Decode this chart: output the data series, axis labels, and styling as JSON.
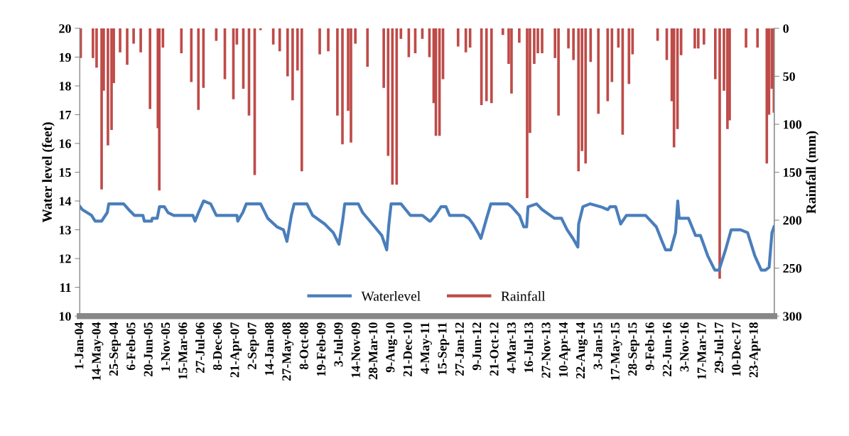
{
  "chart_data": {
    "type": "line",
    "ylabel": "Water level (feet)",
    "y2label": "Rainfall (mm)",
    "xlim": [
      "2003-12-29",
      "2018-09-22"
    ],
    "xticks": [
      {
        "value": "2004-01-01",
        "label": "1-Jan-04"
      },
      {
        "value": "2004-05-14",
        "label": "14-May-04"
      },
      {
        "value": "2004-09-25",
        "label": "25-Sep-04"
      },
      {
        "value": "2005-02-06",
        "label": "6-Feb-05"
      },
      {
        "value": "2005-06-20",
        "label": "20-Jun-05"
      },
      {
        "value": "2005-11-01",
        "label": "1-Nov-05"
      },
      {
        "value": "2006-03-15",
        "label": "15-Mar-06"
      },
      {
        "value": "2006-07-27",
        "label": "27-Jul-06"
      },
      {
        "value": "2006-12-08",
        "label": "8-Dec-06"
      },
      {
        "value": "2007-04-21",
        "label": "21-Apr-07"
      },
      {
        "value": "2007-09-02",
        "label": "2-Sep-07"
      },
      {
        "value": "2008-01-14",
        "label": "14-Jan-08"
      },
      {
        "value": "2008-05-27",
        "label": "27-May-08"
      },
      {
        "value": "2008-10-08",
        "label": "8-Oct-08"
      },
      {
        "value": "2009-02-19",
        "label": "19-Feb-09"
      },
      {
        "value": "2009-07-03",
        "label": "3-Jul-09"
      },
      {
        "value": "2009-11-14",
        "label": "14-Nov-09"
      },
      {
        "value": "2010-03-28",
        "label": "28-Mar-10"
      },
      {
        "value": "2010-08-09",
        "label": "9-Aug-10"
      },
      {
        "value": "2010-12-21",
        "label": "21-Dec-10"
      },
      {
        "value": "2011-05-04",
        "label": "4-May-11"
      },
      {
        "value": "2011-09-15",
        "label": "15-Sep-11"
      },
      {
        "value": "2012-01-27",
        "label": "27-Jan-12"
      },
      {
        "value": "2012-06-09",
        "label": "9-Jun-12"
      },
      {
        "value": "2012-10-21",
        "label": "21-Oct-12"
      },
      {
        "value": "2013-03-04",
        "label": "4-Mar-13"
      },
      {
        "value": "2013-07-16",
        "label": "16-Jul-13"
      },
      {
        "value": "2013-11-27",
        "label": "27-Nov-13"
      },
      {
        "value": "2014-04-10",
        "label": "10-Apr-14"
      },
      {
        "value": "2014-08-22",
        "label": "22-Aug-14"
      },
      {
        "value": "2015-01-03",
        "label": "3-Jan-15"
      },
      {
        "value": "2015-05-17",
        "label": "17-May-15"
      },
      {
        "value": "2015-09-28",
        "label": "28-Sep-15"
      },
      {
        "value": "2016-02-09",
        "label": "9-Feb-16"
      },
      {
        "value": "2016-06-22",
        "label": "22-Jun-16"
      },
      {
        "value": "2016-11-03",
        "label": "3-Nov-16"
      },
      {
        "value": "2017-03-17",
        "label": "17-Mar-17"
      },
      {
        "value": "2017-07-29",
        "label": "29-Jul-17"
      },
      {
        "value": "2017-12-10",
        "label": "10-Dec-17"
      },
      {
        "value": "2018-04-23",
        "label": "23-Apr-18"
      }
    ],
    "ylim": [
      10,
      20
    ],
    "yticks": [
      10,
      11,
      12,
      13,
      14,
      15,
      16,
      17,
      18,
      19,
      20
    ],
    "y2lim": [
      300,
      0
    ],
    "y2ticks": [
      0,
      50,
      100,
      150,
      200,
      250,
      300
    ],
    "grid": false,
    "legend": "bottom",
    "marker": "none",
    "line_style": "solid",
    "series": [
      {
        "name": "Waterlevel",
        "color": "#4a7ebb",
        "x": [
          "2004-01-01",
          "2004-01-18",
          "2004-03-29",
          "2004-04-26",
          "2004-06-15",
          "2004-07-29",
          "2004-08-09",
          "2004-12-03",
          "2005-01-11",
          "2005-02-24",
          "2005-05-01",
          "2005-05-12",
          "2005-07-07",
          "2005-07-12",
          "2005-08-20",
          "2005-09-06",
          "2005-10-14",
          "2005-11-11",
          "2005-12-26",
          "2006-05-23",
          "2006-06-09",
          "2006-07-06",
          "2006-08-14",
          "2006-10-08",
          "2006-11-21",
          "2007-04-30",
          "2007-05-06",
          "2007-06-14",
          "2007-07-11",
          "2007-10-30",
          "2007-12-24",
          "2008-03-05",
          "2008-04-24",
          "2008-05-21",
          "2008-06-24",
          "2008-07-16",
          "2008-10-23",
          "2008-12-06",
          "2009-03-10",
          "2009-05-15",
          "2009-06-28",
          "2009-07-26",
          "2009-08-12",
          "2009-11-25",
          "2009-12-28",
          "2010-04-01",
          "2010-05-26",
          "2010-07-03",
          "2010-07-20",
          "2010-08-06",
          "2010-10-22",
          "2011-01-02",
          "2011-04-06",
          "2011-05-31",
          "2011-06-06",
          "2011-07-14",
          "2011-08-28",
          "2011-10-05",
          "2011-11-02",
          "2012-02-20",
          "2012-03-30",
          "2012-05-02",
          "2012-06-09",
          "2012-07-02",
          "2012-08-15",
          "2012-09-17",
          "2013-01-28",
          "2013-02-25",
          "2013-04-26",
          "2013-05-30",
          "2013-06-21",
          "2013-07-02",
          "2013-09-06",
          "2013-10-20",
          "2014-01-22",
          "2014-03-18",
          "2014-05-01",
          "2014-06-15",
          "2014-07-23",
          "2014-07-29",
          "2014-08-31",
          "2014-10-25",
          "2015-01-16",
          "2015-03-12",
          "2015-03-29",
          "2015-05-12",
          "2015-06-20",
          "2015-08-03",
          "2015-12-30",
          "2016-03-22",
          "2016-05-05",
          "2016-06-02",
          "2016-07-11",
          "2016-08-18",
          "2016-09-04",
          "2016-09-15",
          "2016-11-26",
          "2017-01-20",
          "2017-02-27",
          "2017-04-24",
          "2017-06-18",
          "2017-07-21",
          "2017-09-09",
          "2017-10-23",
          "2018-01-03",
          "2018-02-27",
          "2018-04-24",
          "2018-06-13",
          "2018-07-16",
          "2018-08-13",
          "2018-09-04",
          "2018-09-20"
        ],
        "values": [
          13.8,
          13.7,
          13.5,
          13.3,
          13.3,
          13.6,
          13.9,
          13.9,
          13.7,
          13.5,
          13.5,
          13.3,
          13.3,
          13.4,
          13.4,
          13.8,
          13.8,
          13.6,
          13.5,
          13.5,
          13.3,
          13.6,
          14.0,
          13.9,
          13.5,
          13.5,
          13.3,
          13.6,
          13.9,
          13.9,
          13.4,
          13.1,
          13.0,
          12.6,
          13.5,
          13.9,
          13.9,
          13.5,
          13.2,
          12.9,
          12.5,
          13.3,
          13.9,
          13.9,
          13.6,
          13.1,
          12.8,
          12.3,
          13.2,
          13.9,
          13.9,
          13.5,
          13.5,
          13.3,
          13.3,
          13.5,
          13.8,
          13.8,
          13.5,
          13.5,
          13.4,
          13.2,
          12.9,
          12.7,
          13.4,
          13.9,
          13.9,
          13.8,
          13.5,
          13.1,
          13.1,
          13.8,
          13.9,
          13.7,
          13.4,
          13.4,
          13.0,
          12.7,
          12.4,
          13.2,
          13.8,
          13.9,
          13.8,
          13.7,
          13.8,
          13.8,
          13.2,
          13.5,
          13.5,
          13.1,
          12.6,
          12.3,
          12.3,
          12.9,
          14.0,
          13.4,
          13.4,
          12.8,
          12.8,
          12.1,
          11.6,
          11.6,
          12.3,
          13.0,
          13.0,
          12.9,
          12.1,
          11.6,
          11.6,
          11.7,
          12.9,
          13.1
        ]
      },
      {
        "name": "Rainfall",
        "type": "bar",
        "axis": "y2",
        "color": "#be4b48",
        "x": [
          "2004-01-05",
          "2004-04-09",
          "2004-05-07",
          "2004-06-15",
          "2004-07-01",
          "2004-08-03",
          "2004-08-31",
          "2004-09-17",
          "2004-11-05",
          "2004-12-30",
          "2005-02-18",
          "2005-04-14",
          "2005-06-25",
          "2005-08-25",
          "2005-09-05",
          "2005-10-03",
          "2006-02-23",
          "2006-05-11",
          "2006-07-05",
          "2006-08-13",
          "2006-11-20",
          "2007-01-26",
          "2007-04-02",
          "2007-04-29",
          "2007-06-18",
          "2007-08-01",
          "2007-09-14",
          "2007-10-29",
          "2008-02-05",
          "2008-03-26",
          "2008-05-26",
          "2008-07-04",
          "2008-08-11",
          "2008-09-13",
          "2009-01-30",
          "2009-04-06",
          "2009-06-16",
          "2009-07-25",
          "2009-09-07",
          "2009-09-29",
          "2009-11-02",
          "2010-02-04",
          "2010-06-10",
          "2010-07-14",
          "2010-08-16",
          "2010-09-18",
          "2010-10-21",
          "2010-12-21",
          "2011-02-09",
          "2011-04-05",
          "2011-05-30",
          "2011-07-02",
          "2011-07-19",
          "2011-08-16",
          "2011-09-12",
          "2012-01-07",
          "2012-03-07",
          "2012-04-09",
          "2012-07-06",
          "2012-08-14",
          "2012-09-22",
          "2012-12-19",
          "2013-02-02",
          "2013-02-24",
          "2013-04-25",
          "2013-06-25",
          "2013-07-17",
          "2013-08-19",
          "2013-09-16",
          "2013-10-19",
          "2014-01-27",
          "2014-02-23",
          "2014-05-11",
          "2014-06-19",
          "2014-07-28",
          "2014-08-24",
          "2014-09-21",
          "2014-10-30",
          "2014-12-29",
          "2015-03-11",
          "2015-04-13",
          "2015-06-02",
          "2015-07-05",
          "2015-08-23",
          "2015-09-20",
          "2016-04-01",
          "2016-06-11",
          "2016-07-20",
          "2016-08-06",
          "2016-09-02",
          "2016-09-30",
          "2017-01-14",
          "2017-02-10",
          "2017-03-26",
          "2017-06-22",
          "2017-07-26",
          "2017-08-28",
          "2017-09-24",
          "2017-10-11",
          "2018-02-15",
          "2018-05-15",
          "2018-07-26",
          "2018-08-12",
          "2018-09-03",
          "2018-09-19"
        ],
        "values": [
          31,
          31,
          41,
          168,
          65,
          122,
          106,
          57,
          25,
          38,
          16,
          25,
          84,
          104,
          169,
          20,
          26,
          56,
          85,
          62,
          13,
          53,
          74,
          17,
          63,
          91,
          153,
          2,
          17,
          24,
          50,
          75,
          44,
          149,
          27,
          24,
          91,
          121,
          86,
          119,
          16,
          40,
          62,
          133,
          163,
          163,
          11,
          30,
          26,
          11,
          30,
          78,
          112,
          112,
          53,
          19,
          25,
          20,
          80,
          76,
          78,
          7,
          37,
          68,
          15,
          177,
          109,
          37,
          26,
          26,
          31,
          91,
          21,
          33,
          149,
          128,
          141,
          35,
          89,
          76,
          56,
          20,
          111,
          58,
          27,
          13,
          33,
          76,
          124,
          105,
          28,
          21,
          21,
          17,
          53,
          261,
          65,
          105,
          96,
          20,
          20,
          141,
          90,
          63,
          88
        ]
      }
    ]
  }
}
